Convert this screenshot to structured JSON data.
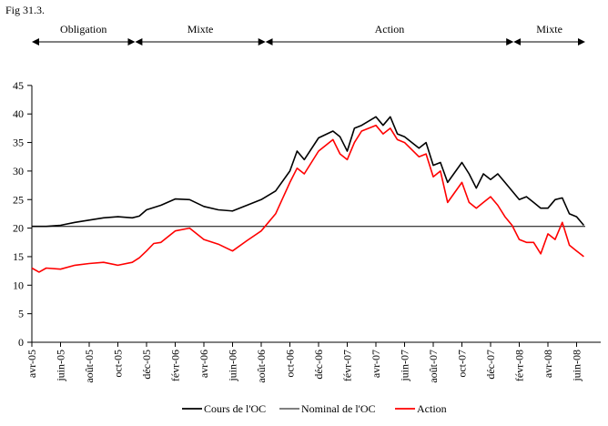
{
  "figure_label": "Fig 31.3.",
  "colors": {
    "cours": "#000000",
    "nominal": "#000000",
    "action": "#ff0000",
    "axis": "#000000"
  },
  "chart_data": {
    "type": "line",
    "title": "",
    "xlabel": "",
    "ylabel": "",
    "ylim": [
      0,
      45
    ],
    "yticks": [
      0,
      5,
      10,
      15,
      20,
      25,
      30,
      35,
      40,
      45
    ],
    "xlim": [
      0,
      38
    ],
    "x_unit": "months since avr-05",
    "xticks": [
      {
        "m": 0,
        "label": "avr-05"
      },
      {
        "m": 2,
        "label": "juin-05"
      },
      {
        "m": 4,
        "label": "août-05"
      },
      {
        "m": 6,
        "label": "oct-05"
      },
      {
        "m": 8,
        "label": "déc-05"
      },
      {
        "m": 10,
        "label": "févr-06"
      },
      {
        "m": 12,
        "label": "avr-06"
      },
      {
        "m": 14,
        "label": "juin-06"
      },
      {
        "m": 16,
        "label": "août-06"
      },
      {
        "m": 18,
        "label": "oct-06"
      },
      {
        "m": 20,
        "label": "déc-06"
      },
      {
        "m": 22,
        "label": "févr-07"
      },
      {
        "m": 24,
        "label": "avr-07"
      },
      {
        "m": 26,
        "label": "juin-07"
      },
      {
        "m": 28,
        "label": "août-07"
      },
      {
        "m": 30,
        "label": "oct-07"
      },
      {
        "m": 32,
        "label": "déc-07"
      },
      {
        "m": 34,
        "label": "févr-08"
      },
      {
        "m": 36,
        "label": "avr-08"
      },
      {
        "m": 38,
        "label": "juin-08"
      }
    ],
    "phases": [
      {
        "label": "Obligation",
        "start": 0,
        "end": 7.2
      },
      {
        "label": "Mixte",
        "start": 7.2,
        "end": 16.3
      },
      {
        "label": "Action",
        "start": 16.3,
        "end": 33.6
      },
      {
        "label": "Mixte",
        "start": 33.6,
        "end": 38.6
      }
    ],
    "series": [
      {
        "name": "Cours de l'OC",
        "x": [
          0,
          1,
          2,
          3,
          4,
          5,
          6,
          7,
          7.5,
          8,
          9,
          10,
          11,
          12,
          13,
          14,
          15,
          16,
          17,
          18,
          18.5,
          19,
          20,
          21,
          21.5,
          22,
          22.5,
          23,
          24,
          24.5,
          25,
          25.5,
          26,
          27,
          27.5,
          28,
          28.5,
          29,
          30,
          30.5,
          31,
          31.5,
          32,
          32.5,
          33,
          33.5,
          34,
          34.5,
          35,
          35.5,
          36,
          36.5,
          37,
          37.5,
          38,
          38.5
        ],
        "values": [
          20.3,
          20.3,
          20.5,
          21.0,
          21.4,
          21.8,
          22.0,
          21.8,
          22.1,
          23.2,
          24.0,
          25.1,
          25.0,
          23.8,
          23.2,
          23.0,
          24.0,
          25.0,
          26.5,
          30.0,
          33.5,
          32.0,
          35.8,
          37.0,
          36.0,
          33.5,
          37.5,
          38.0,
          39.5,
          38.0,
          39.5,
          36.5,
          36.0,
          34.0,
          35.0,
          31.0,
          31.5,
          28.0,
          31.5,
          29.5,
          27.0,
          29.5,
          28.5,
          29.5,
          28.0,
          26.5,
          25.0,
          25.5,
          24.5,
          23.5,
          23.5,
          25.0,
          25.3,
          22.5,
          22.0,
          20.5
        ]
      },
      {
        "name": "Nominal de l'OC",
        "x": [
          0,
          38.6
        ],
        "values": [
          20.3,
          20.3
        ]
      },
      {
        "name": "Action",
        "x": [
          0,
          0.5,
          1,
          2,
          3,
          4,
          5,
          6,
          7,
          7.5,
          8,
          8.5,
          9,
          10,
          11,
          12,
          13,
          14,
          15,
          16,
          17,
          18,
          18.5,
          19,
          20,
          21,
          21.5,
          22,
          22.5,
          23,
          24,
          24.5,
          25,
          25.5,
          26,
          27,
          27.5,
          28,
          28.5,
          29,
          30,
          30.5,
          31,
          31.5,
          32,
          32.5,
          33,
          33.5,
          34,
          34.5,
          35,
          35.5,
          36,
          36.5,
          37,
          37.5,
          38,
          38.5
        ],
        "values": [
          13.0,
          12.3,
          13.0,
          12.8,
          13.5,
          13.8,
          14.0,
          13.5,
          14.0,
          14.8,
          16.0,
          17.3,
          17.5,
          19.5,
          20.0,
          18.0,
          17.2,
          16.0,
          17.8,
          19.5,
          22.5,
          28.0,
          30.5,
          29.5,
          33.5,
          35.5,
          33.0,
          32.0,
          35.0,
          37.0,
          38.0,
          36.5,
          37.5,
          35.5,
          35.0,
          32.5,
          33.0,
          29.0,
          30.0,
          24.5,
          28.0,
          24.5,
          23.5,
          24.5,
          25.5,
          24.0,
          22.0,
          20.5,
          18.0,
          17.5,
          17.5,
          15.5,
          19.0,
          18.0,
          21.0,
          17.0,
          16.0,
          15.0
        ]
      }
    ],
    "legend": {
      "position": "bottom"
    }
  }
}
